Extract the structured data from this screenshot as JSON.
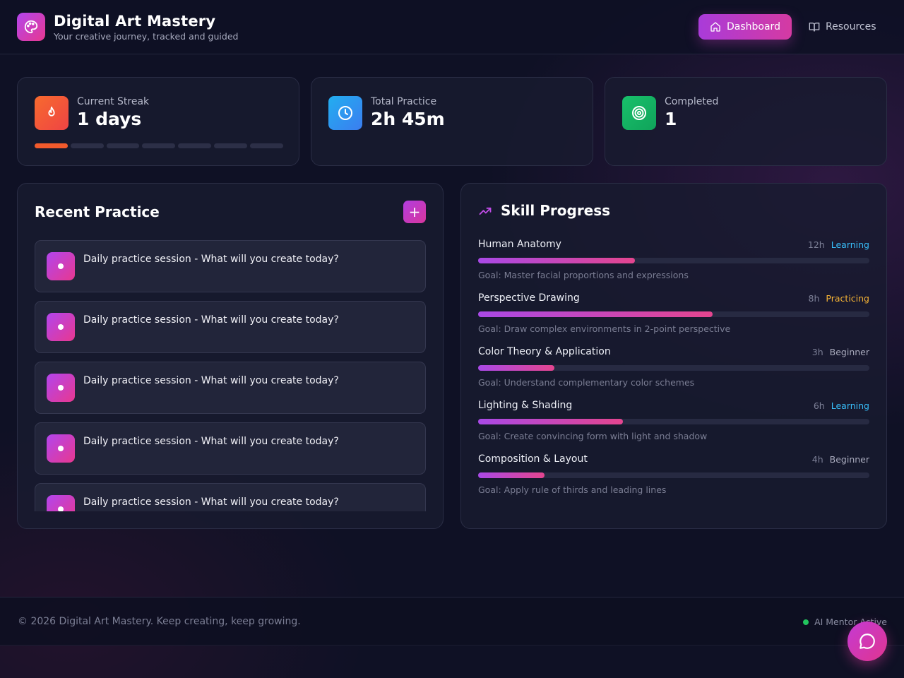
{
  "header": {
    "title": "Digital Art Mastery",
    "subtitle": "Your creative journey, tracked and guided",
    "nav": [
      {
        "label": "Dashboard",
        "icon": "home-icon",
        "active": true
      },
      {
        "label": "Resources",
        "icon": "book-icon",
        "active": false
      }
    ]
  },
  "stats": {
    "streak": {
      "label": "Current Streak",
      "value": "1 days",
      "icon": "flame-icon",
      "color": "#f25a2c",
      "filled_segments": 1,
      "total_segments": 7
    },
    "practice": {
      "label": "Total Practice",
      "value": "2h 45m",
      "icon": "clock-icon",
      "color": "#1e9be6"
    },
    "completed": {
      "label": "Completed",
      "value": "1",
      "icon": "target-icon",
      "color": "#16b364"
    }
  },
  "recent_practice": {
    "title": "Recent Practice",
    "add_label": "+",
    "items": [
      {
        "text": "Daily practice session - What will you create today?"
      },
      {
        "text": "Daily practice session - What will you create today?"
      },
      {
        "text": "Daily practice session - What will you create today?"
      },
      {
        "text": "Daily practice session - What will you create today?"
      },
      {
        "text": "Daily practice session - What will you create today?"
      }
    ]
  },
  "skills": {
    "title": "Skill Progress",
    "items": [
      {
        "name": "Human Anatomy",
        "hours": "12h",
        "level": "Learning",
        "level_color": "#38bdf8",
        "progress": 0.4,
        "goal": "Goal: Master facial proportions and expressions"
      },
      {
        "name": "Perspective Drawing",
        "hours": "8h",
        "level": "Practicing",
        "level_color": "#f5b335",
        "progress": 0.6,
        "goal": "Goal: Draw complex environments in 2-point perspective"
      },
      {
        "name": "Color Theory & Application",
        "hours": "3h",
        "level": "Beginner",
        "level_color": "#a9abbd",
        "progress": 0.195,
        "goal": "Goal: Understand complementary color schemes"
      },
      {
        "name": "Lighting & Shading",
        "hours": "6h",
        "level": "Learning",
        "level_color": "#38bdf8",
        "progress": 0.37,
        "goal": "Goal: Create convincing form with light and shadow"
      },
      {
        "name": "Composition & Layout",
        "hours": "4h",
        "level": "Beginner",
        "level_color": "#a9abbd",
        "progress": 0.17,
        "goal": "Goal: Apply rule of thirds and leading lines"
      }
    ]
  },
  "footer": {
    "copyright": "© 2026 Digital Art Mastery. Keep creating, keep growing.",
    "status": "AI Mentor Active",
    "status_color": "#22c55e"
  },
  "chat": {
    "icon": "chat-bubble-icon"
  }
}
